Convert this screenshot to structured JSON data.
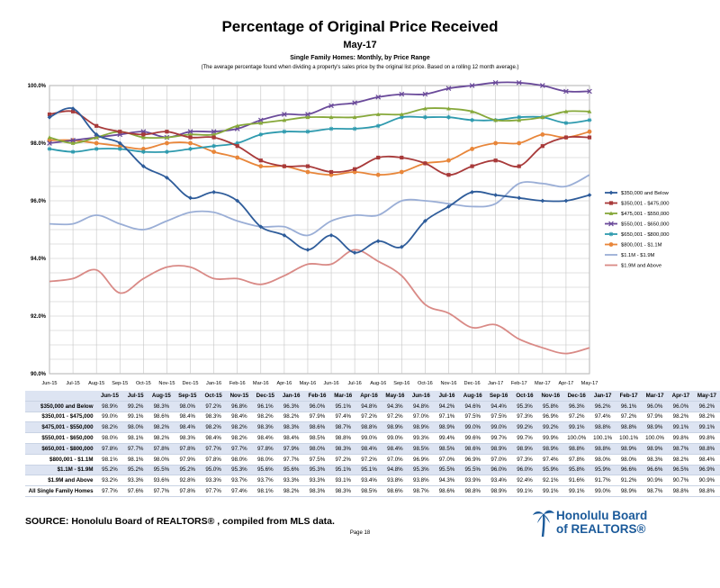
{
  "page": {
    "title": "Percentage of Original Price Received",
    "period": "May-17",
    "subtitle": "Single Family Homes: Monthly, by Price Range",
    "note": "(The average percentage found when dividing a property's sales price by the original list price. Based on a rolling 12 month average.)",
    "source": "SOURCE:  Honolulu Board of REALTORS® , compiled from MLS data.",
    "page_number": "Page 18",
    "logo_line1": "Honolulu Board",
    "logo_line2": "of REALTORS®",
    "logo_icon": "palm-tree-icon",
    "table_label_total": "All Single Family Homes"
  },
  "chart_data": {
    "type": "line",
    "categories": [
      "Jun-15",
      "Jul-15",
      "Aug-15",
      "Sep-15",
      "Oct-15",
      "Nov-15",
      "Dec-15",
      "Jan-16",
      "Feb-16",
      "Mar-16",
      "Apr-16",
      "May-16",
      "Jun-16",
      "Jul-16",
      "Aug-16",
      "Sep-16",
      "Oct-16",
      "Nov-16",
      "Dec-16",
      "Jan-17",
      "Feb-17",
      "Mar-17",
      "Apr-17",
      "May-17"
    ],
    "ylim": [
      90,
      100
    ],
    "yticks": [
      "90.0%",
      "92.0%",
      "94.0%",
      "96.0%",
      "98.0%",
      "100.0%"
    ],
    "grid": true,
    "legend_position": "right",
    "series": [
      {
        "name": "$350,000 and Below",
        "color": "#2e5c9a",
        "marker": "diamond",
        "values": [
          98.9,
          99.2,
          98.3,
          98.0,
          97.2,
          96.8,
          96.1,
          96.3,
          96.0,
          95.1,
          94.8,
          94.3,
          94.8,
          94.2,
          94.6,
          94.4,
          95.3,
          95.8,
          96.3,
          96.2,
          96.1,
          96.0,
          96.0,
          96.2
        ]
      },
      {
        "name": "$350,001 - $475,000",
        "color": "#a83a3a",
        "marker": "square",
        "values": [
          99.0,
          99.1,
          98.6,
          98.4,
          98.3,
          98.4,
          98.2,
          98.2,
          97.9,
          97.4,
          97.2,
          97.2,
          97.0,
          97.1,
          97.5,
          97.5,
          97.3,
          96.9,
          97.2,
          97.4,
          97.2,
          97.9,
          98.2,
          98.2
        ]
      },
      {
        "name": "$475,001 - $550,000",
        "color": "#86a83a",
        "marker": "triangle",
        "values": [
          98.2,
          98.0,
          98.2,
          98.4,
          98.2,
          98.2,
          98.3,
          98.3,
          98.6,
          98.7,
          98.8,
          98.9,
          98.9,
          98.9,
          99.0,
          99.0,
          99.2,
          99.2,
          99.1,
          98.8,
          98.8,
          98.9,
          99.1,
          99.1
        ]
      },
      {
        "name": "$550,001 - $650,000",
        "color": "#6a4a9a",
        "marker": "x",
        "values": [
          98.0,
          98.1,
          98.2,
          98.3,
          98.4,
          98.2,
          98.4,
          98.4,
          98.5,
          98.8,
          99.0,
          99.0,
          99.3,
          99.4,
          99.6,
          99.7,
          99.7,
          99.9,
          100.0,
          100.1,
          100.1,
          100.0,
          99.8,
          99.8
        ]
      },
      {
        "name": "$650,001 - $800,000",
        "color": "#2e9aae",
        "marker": "star",
        "values": [
          97.8,
          97.7,
          97.8,
          97.8,
          97.7,
          97.7,
          97.8,
          97.9,
          98.0,
          98.3,
          98.4,
          98.4,
          98.5,
          98.5,
          98.6,
          98.9,
          98.9,
          98.9,
          98.8,
          98.8,
          98.9,
          98.9,
          98.7,
          98.8
        ]
      },
      {
        "name": "$800,001 - $1.1M",
        "color": "#e8863a",
        "marker": "circle",
        "values": [
          98.1,
          98.1,
          98.0,
          97.9,
          97.8,
          98.0,
          98.0,
          97.7,
          97.5,
          97.2,
          97.2,
          97.0,
          96.9,
          97.0,
          96.9,
          97.0,
          97.3,
          97.4,
          97.8,
          98.0,
          98.0,
          98.3,
          98.2,
          98.4
        ]
      },
      {
        "name": "$1.1M - $1.9M",
        "color": "#9aaed6",
        "marker": "none",
        "values": [
          95.2,
          95.2,
          95.5,
          95.2,
          95.0,
          95.3,
          95.6,
          95.6,
          95.3,
          95.1,
          95.1,
          94.8,
          95.3,
          95.5,
          95.5,
          96.0,
          96.0,
          95.9,
          95.8,
          95.9,
          96.6,
          96.6,
          96.5,
          96.9
        ]
      },
      {
        "name": "$1.9M and Above",
        "color": "#d98a86",
        "marker": "none",
        "values": [
          93.2,
          93.3,
          93.6,
          92.8,
          93.3,
          93.7,
          93.7,
          93.3,
          93.3,
          93.1,
          93.4,
          93.8,
          93.8,
          94.3,
          93.9,
          93.4,
          92.4,
          92.1,
          91.6,
          91.7,
          91.2,
          90.9,
          90.7,
          90.9
        ]
      }
    ]
  },
  "table": {
    "headers": [
      "Jun-15",
      "Jul-15",
      "Aug-15",
      "Sep-15",
      "Oct-15",
      "Nov-15",
      "Dec-15",
      "Jan-16",
      "Feb-16",
      "Mar-16",
      "Apr-16",
      "May-16",
      "Jun-16",
      "Jul-16",
      "Aug-16",
      "Sep-16",
      "Oct-16",
      "Nov-16",
      "Dec-16",
      "Jan-17",
      "Feb-17",
      "Mar-17",
      "Apr-17",
      "May-17"
    ],
    "total_values": [
      "97.7%",
      "97.6%",
      "97.7%",
      "97.8%",
      "97.7%",
      "97.4%",
      "98.1%",
      "98.2%",
      "98.3%",
      "98.3%",
      "98.5%",
      "98.6%",
      "98.7%",
      "98.6%",
      "98.8%",
      "98.9%",
      "99.1%",
      "99.1%",
      "99.1%",
      "99.0%",
      "98.9%",
      "98.7%",
      "98.8%",
      "98.8%"
    ]
  }
}
